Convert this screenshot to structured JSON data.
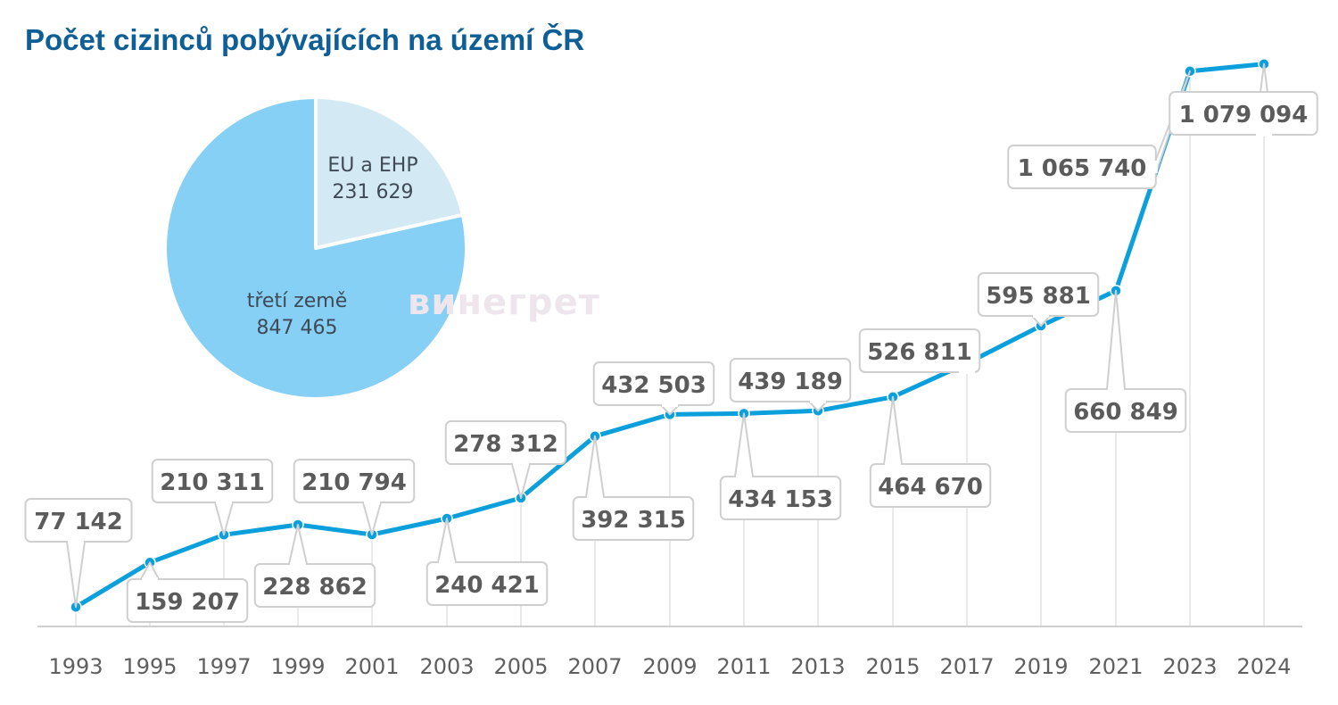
{
  "title": "Počet cizinců pobývajících na území ČR",
  "watermark": "винегрет",
  "colors": {
    "title": "#0f5f97",
    "line": "#0b9fdc",
    "pie_third": "#86cff5",
    "pie_eu": "#d3eaf4",
    "callout_border": "#cfcfcf",
    "value_text": "#5b5b5b",
    "axis_text": "#5f5f5f"
  },
  "chart_data": [
    {
      "type": "line",
      "title": "",
      "xlabel": "",
      "ylabel": "",
      "x": [
        "1993",
        "1995",
        "1997",
        "1999",
        "2001",
        "2003",
        "2005",
        "2007",
        "2009",
        "2011",
        "2013",
        "2015",
        "2017",
        "2019",
        "2021",
        "2023",
        "2024"
      ],
      "series": [
        {
          "values": [
            77142,
            159207,
            210311,
            228862,
            210794,
            240421,
            278312,
            392315,
            432503,
            434153,
            439189,
            464670,
            526811,
            595881,
            660849,
            1065740,
            1079094
          ],
          "labels": [
            "77 142",
            "159 207",
            "210 311",
            "228 862",
            "210 794",
            "240 421",
            "278 312",
            "392 315",
            "432 503",
            "434 153",
            "439 189",
            "464 670",
            "526 811",
            "595 881",
            "660 849",
            "1 065 740",
            "1 079 094"
          ]
        }
      ],
      "grid": "vertical lines at each year",
      "legend": "none"
    },
    {
      "type": "pie",
      "slices": [
        {
          "label": "EU a EHP",
          "value": 231629,
          "value_label": "231 629"
        },
        {
          "label": "třetí země",
          "value": 847465,
          "value_label": "847 465"
        }
      ]
    }
  ]
}
